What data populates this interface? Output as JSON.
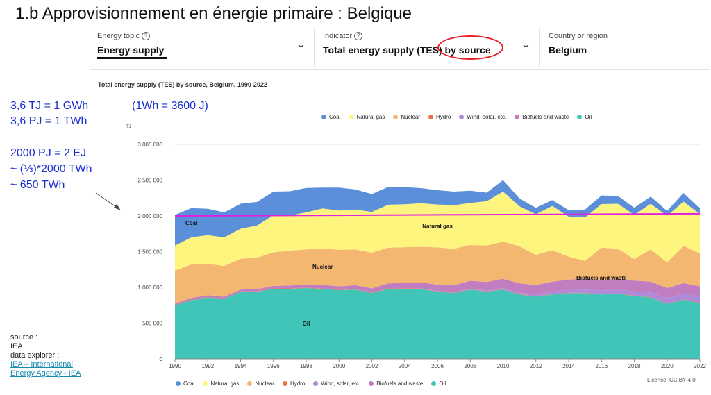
{
  "slide_title": "1.b Approvisionnement en énergie primaire : Belgique",
  "selectors": [
    {
      "label": "Energy topic",
      "value": "Energy supply"
    },
    {
      "label": "Indicator",
      "value": "Total energy supply (TES) by source"
    },
    {
      "label": "Country or region",
      "value": "Belgium"
    }
  ],
  "notes": {
    "line1": "3,6 TJ = 1 GWh",
    "line2": "3,6 PJ = 1 TWh",
    "line3": "(1Wh = 3600 J)",
    "line4": "2000 PJ = 2 EJ",
    "line5": "~ (⅓)*2000 TWh",
    "line6": "~ 650 TWh"
  },
  "source": {
    "line1": "source :",
    "line2": "IEA",
    "line3": "data explorer :",
    "link1": "IEA – International",
    "link2": "Energy Agency - IEA"
  },
  "licence": "Licence: CC BY 4.0",
  "colors": {
    "coal": "#5b8fd9",
    "natural_gas": "#fdf57d",
    "nuclear": "#f4b771",
    "hydro": "#e8734a",
    "wind_solar": "#b08ad8",
    "biofuels": "#c07dc0",
    "oil": "#41c5b9",
    "reference_line": "#e020e0",
    "annotation": "#1a2fd0",
    "highlight": "#e8202a"
  },
  "chart_data": {
    "type": "area",
    "stacked": true,
    "title": "Total energy supply (TES) by source, Belgium, 1990-2022",
    "ylabel": "TJ",
    "ylim": [
      0,
      3000000
    ],
    "yticks": [
      0,
      500000,
      1000000,
      1500000,
      2000000,
      2500000,
      3000000
    ],
    "ytick_labels": [
      "0",
      "500 000",
      "1 000 000",
      "1 500 000",
      "2 000 000",
      "2 500 000",
      "3 000 000"
    ],
    "x": [
      1990,
      1991,
      1992,
      1993,
      1994,
      1995,
      1996,
      1997,
      1998,
      1999,
      2000,
      2001,
      2002,
      2003,
      2004,
      2005,
      2006,
      2007,
      2008,
      2009,
      2010,
      2011,
      2012,
      2013,
      2014,
      2015,
      2016,
      2017,
      2018,
      2019,
      2020,
      2021,
      2022
    ],
    "xticks": [
      1990,
      1992,
      1994,
      1996,
      1998,
      2000,
      2002,
      2004,
      2006,
      2008,
      2010,
      2012,
      2014,
      2016,
      2018,
      2020,
      2022
    ],
    "series": [
      {
        "name": "Oil",
        "key": "oil",
        "values": [
          750000,
          820000,
          860000,
          840000,
          940000,
          940000,
          980000,
          980000,
          990000,
          980000,
          960000,
          970000,
          920000,
          980000,
          980000,
          980000,
          940000,
          920000,
          970000,
          940000,
          970000,
          900000,
          870000,
          900000,
          920000,
          920000,
          900000,
          910000,
          880000,
          860000,
          770000,
          830000,
          780000
        ]
      },
      {
        "name": "Hydro",
        "key": "hydro",
        "values": [
          5000,
          5000,
          5000,
          5000,
          5000,
          5000,
          5000,
          5000,
          5000,
          5000,
          5000,
          5000,
          5000,
          5000,
          5000,
          5000,
          5000,
          5000,
          5000,
          5000,
          5000,
          5000,
          5000,
          5000,
          5000,
          5000,
          5000,
          5000,
          5000,
          5000,
          5000,
          5000,
          5000
        ]
      },
      {
        "name": "Wind, solar, etc.",
        "key": "wind_solar",
        "values": [
          0,
          0,
          0,
          0,
          0,
          0,
          0,
          0,
          0,
          0,
          0,
          0,
          0,
          1000,
          2000,
          3000,
          4000,
          5000,
          7000,
          10000,
          15000,
          20000,
          28000,
          35000,
          40000,
          45000,
          50000,
          55000,
          60000,
          65000,
          75000,
          80000,
          85000
        ]
      },
      {
        "name": "Biofuels and waste",
        "key": "biofuels",
        "values": [
          20000,
          25000,
          25000,
          25000,
          25000,
          30000,
          35000,
          40000,
          45000,
          50000,
          50000,
          55000,
          60000,
          70000,
          75000,
          80000,
          90000,
          100000,
          110000,
          120000,
          130000,
          130000,
          130000,
          140000,
          145000,
          150000,
          150000,
          150000,
          150000,
          150000,
          140000,
          145000,
          145000
        ]
      },
      {
        "name": "Nuclear",
        "key": "nuclear",
        "values": [
          460000,
          470000,
          440000,
          430000,
          430000,
          440000,
          470000,
          490000,
          490000,
          510000,
          510000,
          500000,
          500000,
          500000,
          500000,
          500000,
          520000,
          510000,
          500000,
          510000,
          520000,
          520000,
          420000,
          440000,
          320000,
          250000,
          450000,
          420000,
          300000,
          450000,
          360000,
          520000,
          460000
        ]
      },
      {
        "name": "Natural gas",
        "key": "natural_gas",
        "values": [
          350000,
          380000,
          400000,
          400000,
          420000,
          450000,
          520000,
          490000,
          520000,
          560000,
          550000,
          560000,
          570000,
          600000,
          600000,
          610000,
          600000,
          610000,
          590000,
          620000,
          700000,
          560000,
          570000,
          620000,
          560000,
          610000,
          610000,
          630000,
          620000,
          640000,
          650000,
          620000,
          550000
        ]
      },
      {
        "name": "Coal",
        "key": "coal",
        "values": [
          430000,
          410000,
          370000,
          350000,
          350000,
          330000,
          330000,
          340000,
          340000,
          290000,
          320000,
          280000,
          250000,
          250000,
          240000,
          210000,
          200000,
          190000,
          170000,
          120000,
          160000,
          110000,
          90000,
          80000,
          90000,
          110000,
          120000,
          110000,
          100000,
          100000,
          70000,
          120000,
          80000
        ]
      }
    ],
    "legend_order": [
      "Coal",
      "Natural gas",
      "Nuclear",
      "Hydro",
      "Wind, solar, etc.",
      "Biofuels and waste",
      "Oil"
    ],
    "area_labels": [
      {
        "text": "Coal",
        "key": "coal"
      },
      {
        "text": "Natural gas",
        "key": "natural_gas"
      },
      {
        "text": "Nuclear",
        "key": "nuclear"
      },
      {
        "text": "Biofuels and waste",
        "key": "biofuels"
      },
      {
        "text": "Oil",
        "key": "oil"
      }
    ],
    "reference_line": {
      "y": 2000000,
      "y_end": 2030000,
      "x_start": 1990,
      "x_end": 2022
    }
  }
}
